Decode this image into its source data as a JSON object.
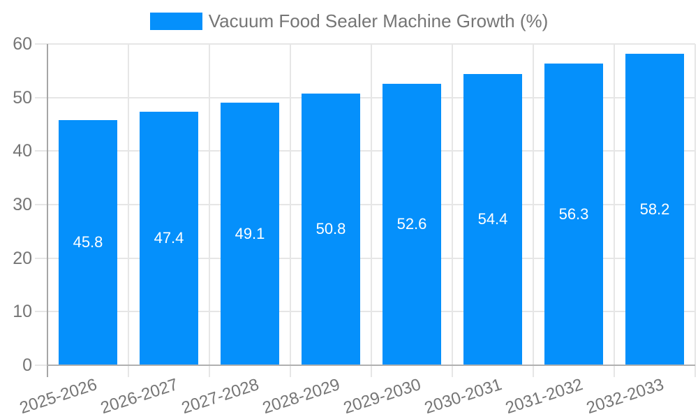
{
  "legend": {
    "label": "Vacuum Food Sealer Machine Growth (%)"
  },
  "colors": {
    "bar": "#0590FB",
    "grid": "#e6e6e6",
    "axis_x": "#b0b0b0",
    "axis_y": "#a6a6a6",
    "tick_text": "#757575",
    "value_label_text": "#ffffff",
    "background": "#ffffff"
  },
  "chart_data": {
    "type": "bar",
    "title": "Vacuum Food Sealer Machine Growth (%)",
    "categories": [
      "2025-2026",
      "2026-2027",
      "2027-2028",
      "2028-2029",
      "2029-2030",
      "2030-2031",
      "2031-2032",
      "2032-2033"
    ],
    "series": [
      {
        "name": "Vacuum Food Sealer Machine Growth (%)",
        "values": [
          45.8,
          47.4,
          49.1,
          50.8,
          52.6,
          54.4,
          56.3,
          58.2
        ]
      }
    ],
    "value_labels": [
      "45.8",
      "47.4",
      "49.1",
      "50.8",
      "52.6",
      "54.4",
      "56.3",
      "58.2"
    ],
    "xlabel": "",
    "ylabel": "",
    "ylim": [
      0,
      60
    ],
    "yticks": [
      0,
      10,
      20,
      30,
      40,
      50,
      60
    ],
    "grid": true,
    "legend_position": "top-center",
    "value_label_position": "inside-center",
    "x_tick_rotation_deg": -18
  }
}
